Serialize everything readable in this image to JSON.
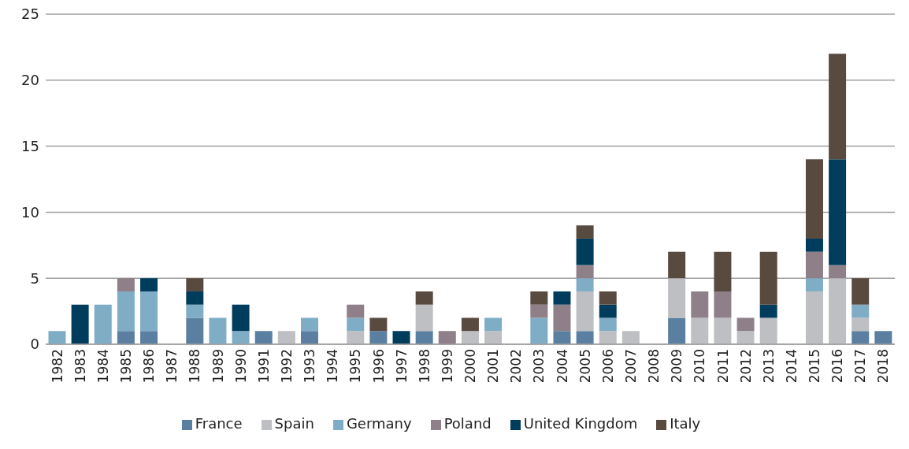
{
  "chart_data": {
    "type": "bar",
    "stacked": true,
    "categories": [
      "1982",
      "1983",
      "1984",
      "1985",
      "1986",
      "1987",
      "1988",
      "1989",
      "1990",
      "1991",
      "1992",
      "1993",
      "1994",
      "1995",
      "1996",
      "1997",
      "1998",
      "1999",
      "2000",
      "2001",
      "2002",
      "2003",
      "2004",
      "2005",
      "2006",
      "2007",
      "2008",
      "2009",
      "2010",
      "2011",
      "2012",
      "2013",
      "2014",
      "2015",
      "2016",
      "2017",
      "2018"
    ],
    "series": [
      {
        "name": "France",
        "color": "#5a7fa0",
        "values": [
          null,
          null,
          null,
          1,
          1,
          null,
          2,
          null,
          null,
          1,
          null,
          1,
          null,
          null,
          1,
          null,
          1,
          null,
          null,
          null,
          null,
          null,
          1,
          1,
          null,
          null,
          null,
          2,
          null,
          null,
          null,
          null,
          null,
          null,
          null,
          1,
          1
        ]
      },
      {
        "name": "Spain",
        "color": "#bebfc3",
        "values": [
          null,
          null,
          null,
          null,
          null,
          null,
          null,
          null,
          null,
          null,
          1,
          null,
          null,
          1,
          null,
          null,
          2,
          null,
          1,
          1,
          null,
          null,
          null,
          3,
          1,
          1,
          null,
          3,
          2,
          2,
          1,
          2,
          null,
          4,
          5,
          1,
          null
        ]
      },
      {
        "name": "Germany",
        "color": "#7fadc6",
        "values": [
          1,
          null,
          3,
          3,
          3,
          null,
          1,
          2,
          1,
          null,
          null,
          1,
          null,
          1,
          null,
          null,
          null,
          null,
          null,
          1,
          null,
          2,
          null,
          1,
          1,
          null,
          null,
          null,
          null,
          null,
          null,
          null,
          null,
          1,
          null,
          1,
          null
        ]
      },
      {
        "name": "Poland",
        "color": "#8e7f88",
        "values": [
          null,
          null,
          null,
          1,
          null,
          null,
          null,
          null,
          null,
          null,
          null,
          null,
          null,
          1,
          null,
          null,
          null,
          1,
          null,
          null,
          null,
          1,
          2,
          1,
          null,
          null,
          null,
          null,
          2,
          2,
          1,
          null,
          null,
          2,
          1,
          null,
          null
        ]
      },
      {
        "name": "United Kingdom",
        "color": "#003d5c",
        "values": [
          null,
          3,
          null,
          null,
          1,
          null,
          1,
          null,
          2,
          null,
          null,
          null,
          null,
          null,
          null,
          1,
          null,
          null,
          null,
          null,
          null,
          null,
          1,
          2,
          1,
          null,
          null,
          null,
          null,
          null,
          null,
          1,
          null,
          1,
          8,
          null,
          null
        ]
      },
      {
        "name": "Italy",
        "color": "#594a40",
        "values": [
          null,
          null,
          null,
          null,
          null,
          null,
          1,
          null,
          null,
          null,
          null,
          null,
          null,
          null,
          1,
          null,
          1,
          null,
          1,
          null,
          null,
          1,
          null,
          1,
          1,
          null,
          null,
          2,
          null,
          3,
          null,
          4,
          null,
          6,
          8,
          2,
          null
        ]
      }
    ],
    "ylim": [
      0,
      25
    ],
    "yticks": [
      0,
      5,
      10,
      15,
      20,
      25
    ],
    "grid": "y",
    "legend": "bottom"
  }
}
